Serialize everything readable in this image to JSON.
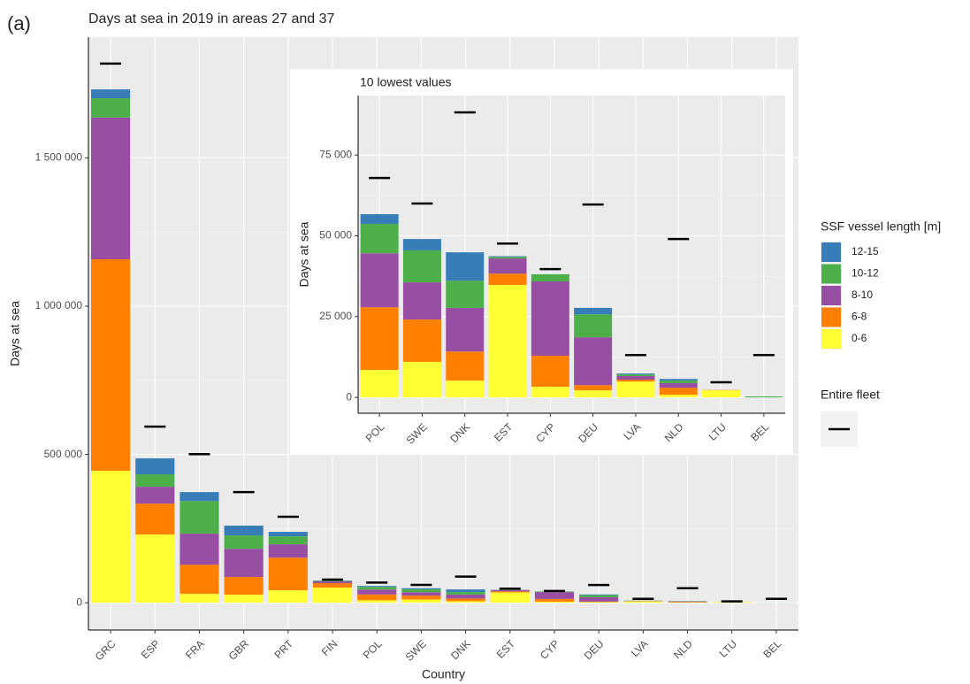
{
  "chart_data": [
    {
      "type": "bar",
      "stacked": true,
      "panel_label": "(a)",
      "title": "Days at sea in 2019 in areas 27 and 37",
      "x_label": "Country",
      "y_label": "Days at sea",
      "categories": [
        "GRC",
        "ESP",
        "FRA",
        "GBR",
        "PRT",
        "FIN",
        "POL",
        "SWE",
        "DNK",
        "EST",
        "CYP",
        "DEU",
        "LVA",
        "NLD",
        "LTU",
        "BEL"
      ],
      "legend_title": "SSF vessel length [m]",
      "series": [
        {
          "name": "0-6",
          "color": "#ffff33",
          "values": [
            445000,
            230000,
            30000,
            27000,
            42000,
            51000,
            8500,
            11000,
            5200,
            34800,
            3300,
            2200,
            4900,
            800,
            2200,
            0
          ]
        },
        {
          "name": "6-8",
          "color": "#ff7f00",
          "values": [
            713000,
            104000,
            98000,
            60000,
            110000,
            15000,
            19400,
            13100,
            9000,
            3500,
            9600,
            1600,
            600,
            2200,
            100,
            0
          ]
        },
        {
          "name": "8-10",
          "color": "#984ea3",
          "values": [
            478000,
            57000,
            105000,
            95000,
            45000,
            6000,
            16700,
            11500,
            13500,
            4700,
            23000,
            14800,
            1100,
            1400,
            0,
            0
          ]
        },
        {
          "name": "10-12",
          "color": "#4daf4a",
          "values": [
            65000,
            42000,
            110000,
            45000,
            27000,
            2000,
            9100,
            9900,
            8400,
            500,
            2200,
            7100,
            500,
            800,
            0,
            300
          ]
        },
        {
          "name": "12-15",
          "color": "#377eb8",
          "values": [
            30000,
            54000,
            30000,
            33000,
            15000,
            1000,
            3000,
            3500,
            8800,
            200,
            0,
            2000,
            300,
            500,
            0,
            0
          ]
        }
      ],
      "fleet": {
        "name": "Entire fleet",
        "color": "#000000",
        "values": [
          1818000,
          594000,
          501000,
          373000,
          290000,
          78000,
          67900,
          60000,
          88200,
          47600,
          39700,
          59700,
          13100,
          49000,
          4700,
          13100
        ]
      },
      "ylim": [
        -92000,
        1907000
      ],
      "yticks": [
        0,
        {
          "value": 500000,
          "label": "500 000"
        },
        {
          "value": 1000000,
          "label": "1 000 000"
        },
        {
          "value": 1500000,
          "label": "1 500 000"
        }
      ],
      "grid": true
    },
    {
      "type": "bar",
      "stacked": true,
      "title": "10 lowest values",
      "y_label": "Days at sea",
      "categories": [
        "POL",
        "SWE",
        "DNK",
        "EST",
        "CYP",
        "DEU",
        "LVA",
        "NLD",
        "LTU",
        "BEL"
      ],
      "series": [
        {
          "name": "0-6",
          "color": "#ffff33",
          "values": [
            8500,
            11000,
            5200,
            34800,
            3300,
            2200,
            4900,
            800,
            2200,
            0
          ]
        },
        {
          "name": "6-8",
          "color": "#ff7f00",
          "values": [
            19400,
            13100,
            9000,
            3500,
            9600,
            1600,
            600,
            2200,
            100,
            0
          ]
        },
        {
          "name": "8-10",
          "color": "#984ea3",
          "values": [
            16700,
            11500,
            13500,
            4700,
            23000,
            14800,
            1100,
            1400,
            0,
            0
          ]
        },
        {
          "name": "10-12",
          "color": "#4daf4a",
          "values": [
            9100,
            9900,
            8400,
            500,
            2200,
            7100,
            500,
            800,
            0,
            300
          ]
        },
        {
          "name": "12-15",
          "color": "#377eb8",
          "values": [
            3000,
            3500,
            8800,
            200,
            0,
            2000,
            300,
            500,
            0,
            0
          ]
        }
      ],
      "fleet": {
        "name": "Entire fleet",
        "color": "#000000",
        "values": [
          67900,
          60000,
          88200,
          47600,
          39700,
          59700,
          13100,
          49000,
          4700,
          13100
        ]
      },
      "ylim": [
        -4900,
        93400
      ],
      "yticks": [
        0,
        {
          "value": 25000,
          "label": "25 000"
        },
        {
          "value": 50000,
          "label": "50 000"
        },
        {
          "value": 75000,
          "label": "75 000"
        }
      ],
      "grid": true
    }
  ]
}
